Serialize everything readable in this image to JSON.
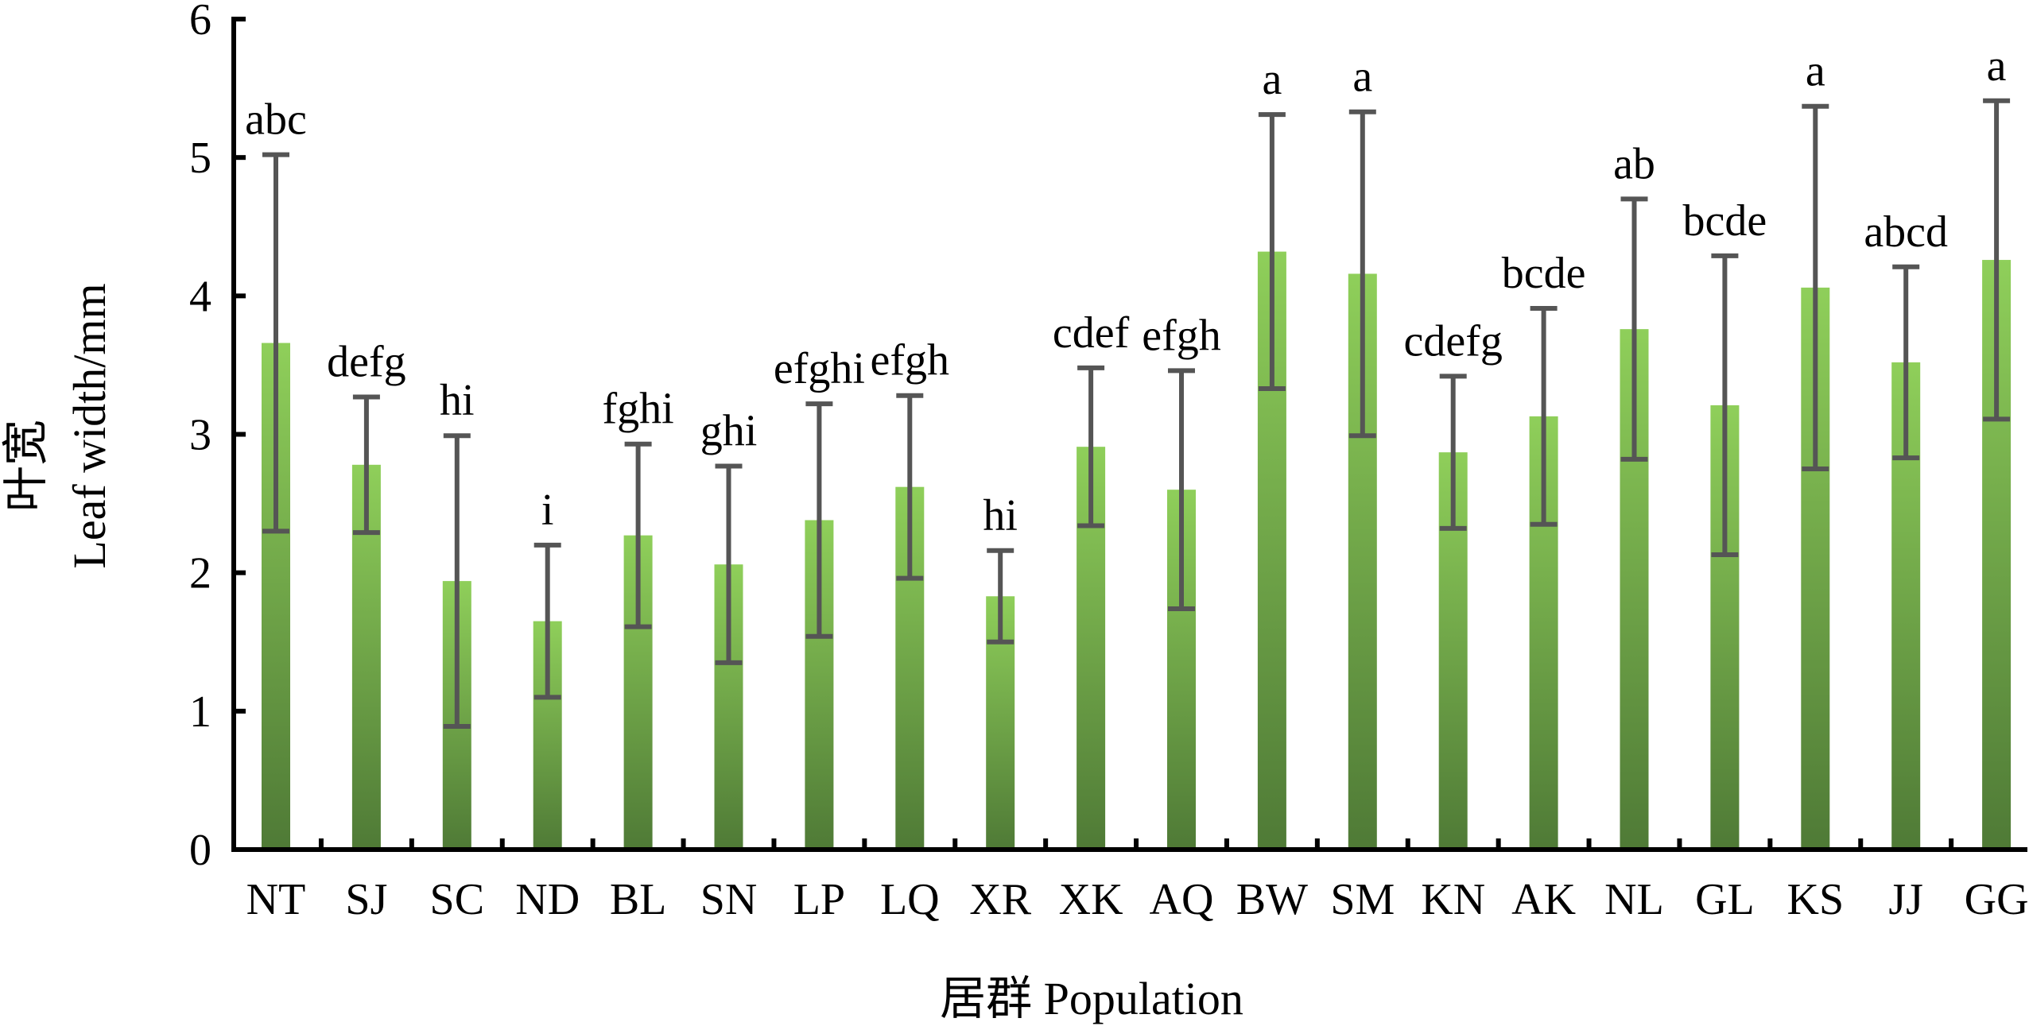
{
  "chart_data": {
    "type": "bar",
    "xlabel": "居群 Population",
    "ylabel_cn": "叶宽",
    "ylabel": "Leaf width/mm",
    "ylim": [
      0,
      6
    ],
    "yticks": [
      "0",
      "1",
      "2",
      "3",
      "4",
      "5",
      "6"
    ],
    "grid": false,
    "categories": [
      "NT",
      "SJ",
      "SC",
      "ND",
      "BL",
      "SN",
      "LP",
      "LQ",
      "XR",
      "XK",
      "AQ",
      "BW",
      "SM",
      "KN",
      "AK",
      "NL",
      "GL",
      "KS",
      "JJ",
      "GG"
    ],
    "values": [
      3.66,
      2.78,
      1.94,
      1.65,
      2.27,
      2.06,
      2.38,
      2.62,
      1.83,
      2.91,
      2.6,
      4.32,
      4.16,
      2.87,
      3.13,
      3.76,
      3.21,
      4.06,
      3.52,
      4.26
    ],
    "error": [
      1.36,
      0.49,
      1.05,
      0.55,
      0.66,
      0.71,
      0.84,
      0.66,
      0.33,
      0.57,
      0.86,
      0.99,
      1.17,
      0.55,
      0.78,
      0.94,
      1.08,
      1.31,
      0.69,
      1.15
    ],
    "significance": [
      "abc",
      "defg",
      "hi",
      "i",
      "fghi",
      "ghi",
      "efghi",
      "efgh",
      "hi",
      "cdef",
      "efgh",
      "a",
      "a",
      "cdefg",
      "bcde",
      "ab",
      "bcde",
      "a",
      "abcd",
      "a"
    ],
    "colors": {
      "bar_top": "#8fcf5a",
      "bar_bottom": "#4f7a36",
      "error_bar": "#555555"
    }
  }
}
